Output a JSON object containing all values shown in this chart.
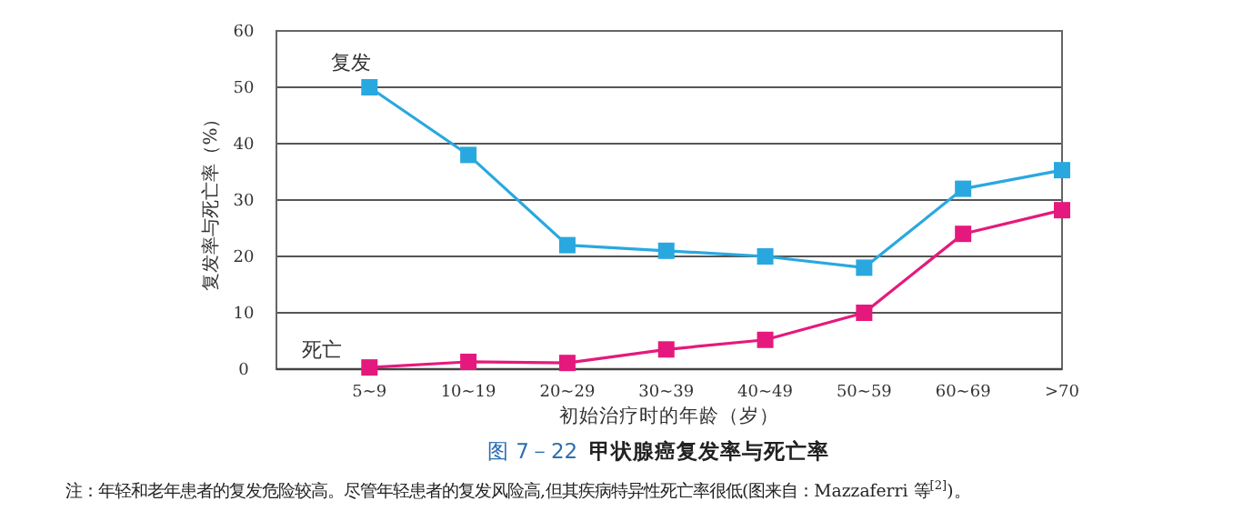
{
  "chart_data": {
    "type": "line",
    "title": "图 7－22",
    "subtitle": "甲状腺癌复发率与死亡率",
    "xlabel": "初始治疗时的年龄（岁）",
    "ylabel": "复发率与死亡率（%）",
    "categories": [
      "5~9",
      "10~19",
      "20~29",
      "30~39",
      "40~49",
      "50~59",
      "60~69",
      ">70"
    ],
    "series": [
      {
        "name": "复发",
        "color": "#29a8e0",
        "values": [
          50,
          38,
          22,
          21,
          20,
          18,
          32,
          35.3
        ]
      },
      {
        "name": "死亡",
        "color": "#e5197d",
        "values": [
          0.3,
          1.3,
          1.1,
          3.5,
          5.2,
          10,
          24,
          28.2
        ]
      }
    ],
    "ylim": [
      0,
      60
    ],
    "yticks": [
      0,
      10,
      20,
      30,
      40,
      50,
      60
    ],
    "grid": "y",
    "legend": false,
    "marker": "square",
    "line_style": "solid",
    "annotations": [
      "注：年轻和老年患者的复发危险较高。尽管年轻患者的复发风险高,但其疾病特异性死亡率很低(图来自：Mazzaferri 等$^{[2]}$)。"
    ]
  }
}
